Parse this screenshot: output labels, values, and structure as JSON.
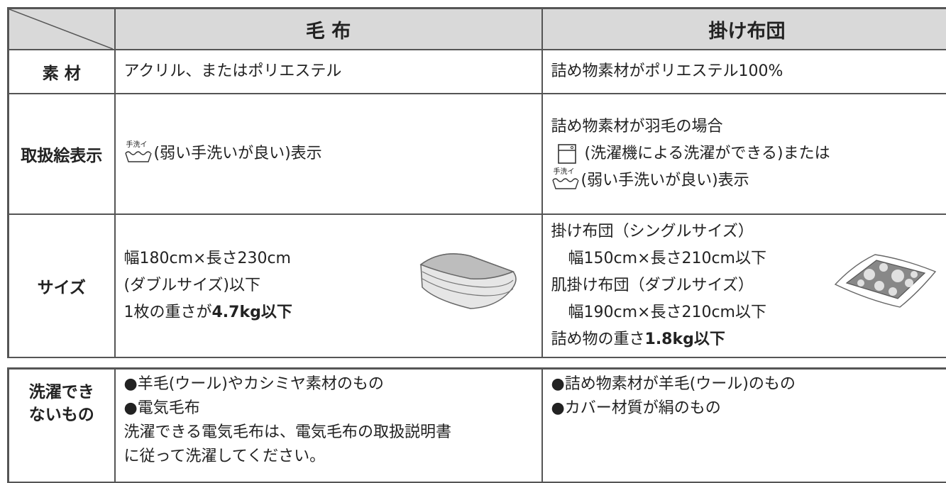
{
  "icon_label": "手洗イ",
  "table": {
    "header": {
      "col1": "毛 布",
      "col2": "掛け布団"
    },
    "rows": [
      {
        "label": "素 材",
        "col1": [
          "アクリル、またはポリエステル"
        ],
        "col2": [
          "詰め物素材がポリエステル100%"
        ]
      },
      {
        "label": "取扱絵表示",
        "col1": [
          "(弱い手洗いが良い)表示"
        ],
        "col2": [
          "詰め物素材が羽毛の場合",
          "(洗濯機による洗濯ができる)または",
          "(弱い手洗いが良い)表示"
        ]
      },
      {
        "label": "サイズ",
        "col1": [
          "幅180cm×長さ230cm",
          "(ダブルサイズ)以下",
          {
            "text": "1枚の重さが",
            "bold": "4.7kg以下"
          }
        ],
        "col2": [
          "掛け布団（シングルサイズ）",
          "幅150cm×長さ210cm以下",
          "肌掛け布団（ダブルサイズ）",
          "幅190cm×長さ210cm以下",
          {
            "text": "詰め物の重さ",
            "bold": "1.8kg以下"
          }
        ]
      }
    ]
  },
  "exclusions": {
    "label": [
      "洗濯でき",
      "ないもの"
    ],
    "col1": [
      "●羊毛(ウール)やカシミヤ素材のもの",
      "●電気毛布",
      "洗濯できる電気毛布は、電気毛布の取扱説明書",
      "に従って洗濯してください。"
    ],
    "col2": [
      "●詰め物素材が羊毛(ウール)のもの",
      "●カバー材質が絹のもの"
    ]
  }
}
